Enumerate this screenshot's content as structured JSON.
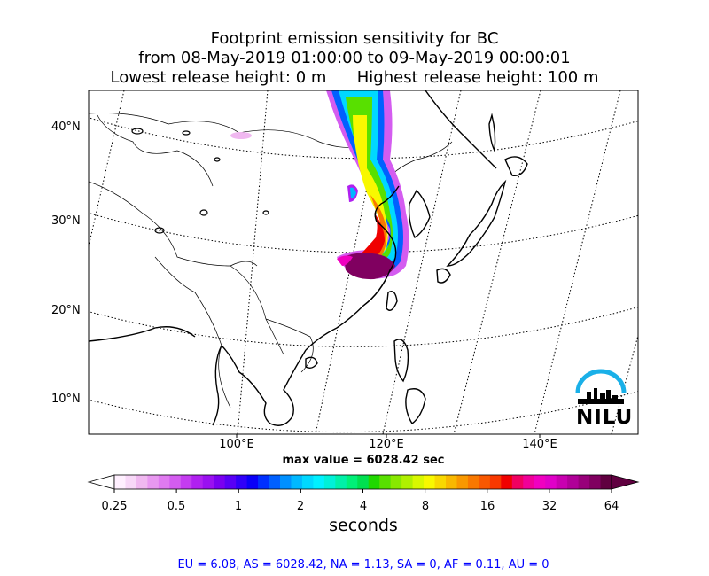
{
  "title": {
    "line1": "Footprint emission sensitivity for BC",
    "line2": "from 08-May-2019 01:00:00 to 09-May-2019 00:00:01",
    "line3": "Lowest release height: 0 m      Highest release height: 100 m"
  },
  "map": {
    "lat_labels": [
      "40°N",
      "30°N",
      "20°N",
      "10°N"
    ],
    "lon_labels": [
      "100°E",
      "120°E",
      "140°E"
    ],
    "max_value_text": "max value = 6028.42 sec",
    "colors": {
      "coast": "#000000",
      "graticule": "#000000",
      "border": "#000000"
    }
  },
  "colorbar": {
    "ticks": [
      "0.25",
      "0.5",
      "1",
      "2",
      "4",
      "8",
      "16",
      "32",
      "64"
    ],
    "unit_label": "seconds",
    "colors": [
      "#fff0ff",
      "#f8d8f8",
      "#f0b8f0",
      "#e898f0",
      "#e07af0",
      "#d45cf0",
      "#c43cf0",
      "#b020f0",
      "#9a10f0",
      "#7a00f0",
      "#5800f5",
      "#3000f8",
      "#0a00f8",
      "#0030ff",
      "#0060ff",
      "#0090ff",
      "#00b8ff",
      "#00d8ff",
      "#00f0ff",
      "#00f0d8",
      "#00f0a8",
      "#00f078",
      "#00e050",
      "#20d800",
      "#58e000",
      "#88e800",
      "#b0f000",
      "#d8f800",
      "#f8f800",
      "#f8d800",
      "#f8b800",
      "#f89800",
      "#f87800",
      "#f85800",
      "#f83800",
      "#f00000",
      "#f00060",
      "#f00098",
      "#f000c0",
      "#e000c8",
      "#c800b0",
      "#b00098",
      "#98007a",
      "#800060",
      "#600040"
    ],
    "under_color": "#ffffff",
    "over_color": "#600040"
  },
  "stats": "EU = 6.08,  AS = 6028.42,  NA = 1.13,  SA = 0,  AF = 0.11,  AU = 0",
  "logo": {
    "text": "NILU",
    "arc_color": "#1ab0e8"
  }
}
